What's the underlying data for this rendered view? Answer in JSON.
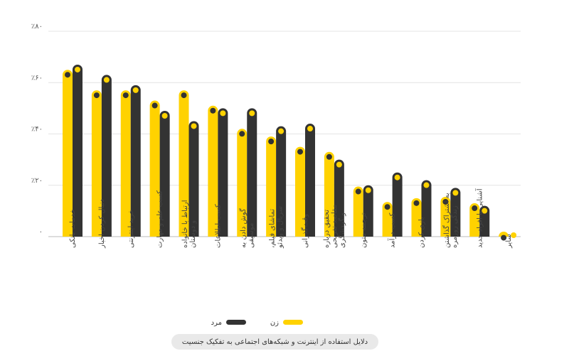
{
  "chart_data": {
    "type": "bar",
    "categories": [
      [
        "خدمات بانکی"
      ],
      [
        "دنبال کردن اخبار"
      ],
      [
        "خرید اینترنتی"
      ],
      [
        "کسب علم و مهارت"
      ],
      [
        "ارتباط با خانواده",
        "و دوستان"
      ],
      [
        "کسب اطلاعات"
      ],
      [
        "گوش دادن به",
        "موسیقی"
      ],
      [
        "تماشای فیلم،",
        "سریال و ویدئو"
      ],
      [
        "وقت‌گذرانی"
      ],
      [
        "تحقیق درباره",
        "مقاصد تفریحی",
        "و گردشگری"
      ],
      [
        "ترجمه متون"
      ],
      [
        "کسب درآمد"
      ],
      [
        "بازی کردن"
      ],
      [
        "به اشتراک گذاشتن",
        "زندگی روزمره"
      ],
      [
        "آشنایی با افراد جدید"
      ],
      [
        "سایر"
      ]
    ],
    "series": [
      {
        "name": "زن",
        "color": "#FFD200",
        "values": [
          65,
          57,
          57,
          53,
          57,
          51,
          42,
          39,
          35,
          33,
          19.5,
          13.5,
          15,
          15.5,
          13,
          1.5
        ]
      },
      {
        "name": "مرد",
        "color": "#333333",
        "values": [
          67,
          63,
          59,
          49,
          45,
          50,
          50,
          43,
          44,
          30,
          20,
          25,
          22,
          19,
          12,
          0
        ]
      }
    ],
    "yticks": [
      "۰",
      "٪۲۰",
      "٪۴۰",
      "٪۶۰",
      "٪۸۰"
    ],
    "ylim": [
      0,
      80
    ],
    "grid": true,
    "legend": "bottom-center",
    "title": "دلایل استفاده از اینترنت و شبکه‌های اجتماعی به تفکیک جنسیت"
  }
}
